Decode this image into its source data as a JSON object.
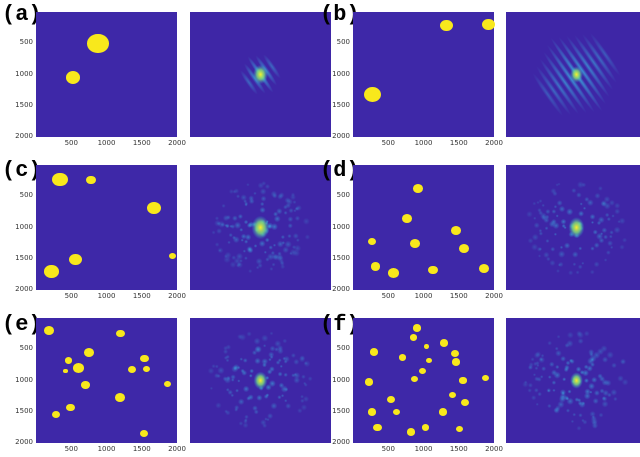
{
  "colors": {
    "plot_bg": "#3e28a8",
    "circle": "#f8e81c",
    "fft_bg": "#3e26a6"
  },
  "axis": {
    "yticks": [
      "500",
      "1000",
      "1500",
      "2000"
    ],
    "xticks": [
      "500",
      "1000",
      "1500",
      "2000"
    ],
    "range": [
      0,
      2000
    ]
  },
  "panels": [
    {
      "label": "(a)",
      "circles": [
        [
          880,
          500,
          150
        ],
        [
          530,
          1050,
          100
        ]
      ]
    },
    {
      "label": "(b)",
      "circles": [
        [
          1330,
          220,
          90
        ],
        [
          1920,
          200,
          90
        ],
        [
          280,
          1320,
          120
        ]
      ]
    },
    {
      "label": "(c)",
      "circles": [
        [
          340,
          230,
          110
        ],
        [
          780,
          240,
          70
        ],
        [
          1680,
          690,
          100
        ],
        [
          560,
          1510,
          90
        ],
        [
          220,
          1700,
          100
        ],
        [
          1930,
          1460,
          50
        ]
      ]
    },
    {
      "label": "(d)",
      "circles": [
        [
          920,
          370,
          70
        ],
        [
          770,
          860,
          70
        ],
        [
          270,
          1220,
          60
        ],
        [
          880,
          1260,
          70
        ],
        [
          1460,
          1050,
          70
        ],
        [
          1580,
          1330,
          70
        ],
        [
          320,
          1620,
          70
        ],
        [
          570,
          1730,
          80
        ],
        [
          1140,
          1680,
          70
        ],
        [
          1860,
          1650,
          70
        ]
      ]
    },
    {
      "label": "(e)",
      "circles": [
        [
          180,
          200,
          70
        ],
        [
          1200,
          250,
          60
        ],
        [
          460,
          680,
          50
        ],
        [
          750,
          550,
          70
        ],
        [
          600,
          800,
          80
        ],
        [
          420,
          850,
          30
        ],
        [
          700,
          1070,
          60
        ],
        [
          1360,
          820,
          60
        ],
        [
          1540,
          650,
          60
        ],
        [
          1570,
          820,
          50
        ],
        [
          1870,
          1060,
          50
        ],
        [
          1190,
          1270,
          70
        ],
        [
          490,
          1430,
          60
        ],
        [
          280,
          1540,
          60
        ],
        [
          1530,
          1850,
          60
        ]
      ]
    },
    {
      "label": "(f)",
      "circles": [
        [
          910,
          160,
          60
        ],
        [
          1290,
          400,
          60
        ],
        [
          860,
          310,
          50
        ],
        [
          1040,
          460,
          40
        ],
        [
          300,
          540,
          60
        ],
        [
          700,
          630,
          50
        ],
        [
          1080,
          680,
          40
        ],
        [
          1450,
          570,
          60
        ],
        [
          1460,
          700,
          60
        ],
        [
          980,
          850,
          50
        ],
        [
          1560,
          1000,
          50
        ],
        [
          1880,
          960,
          50
        ],
        [
          1410,
          1230,
          50
        ],
        [
          870,
          970,
          50
        ],
        [
          230,
          1020,
          60
        ],
        [
          540,
          1300,
          60
        ],
        [
          270,
          1500,
          60
        ],
        [
          620,
          1500,
          50
        ],
        [
          1280,
          1500,
          60
        ],
        [
          1590,
          1350,
          60
        ],
        [
          350,
          1750,
          60
        ],
        [
          820,
          1820,
          60
        ],
        [
          1030,
          1750,
          50
        ],
        [
          1510,
          1780,
          50
        ]
      ]
    }
  ]
}
